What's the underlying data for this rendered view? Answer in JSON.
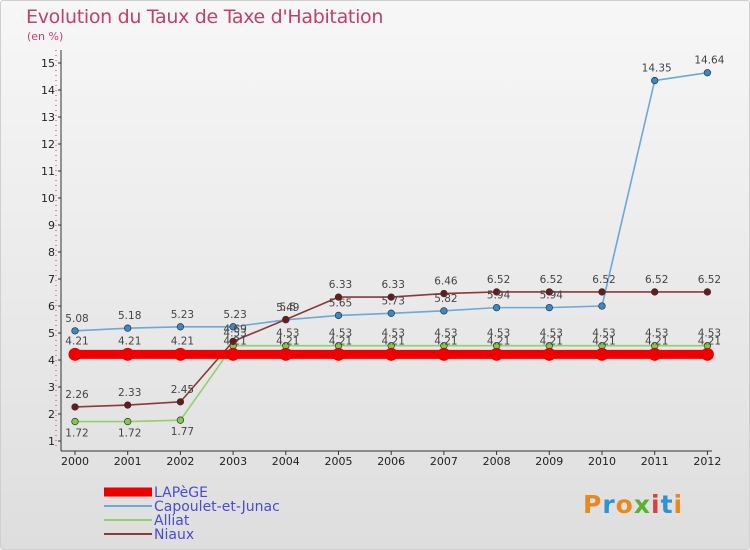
{
  "header": {
    "title": "Evolution du Taux de Taxe d'Habitation",
    "unit": "(en %)"
  },
  "logo": {
    "text": "Proxiti",
    "colors": [
      "#e8891d",
      "#2e93d6",
      "#e8891d",
      "#5bb033",
      "#d94040",
      "#2e93d6",
      "#e8891d"
    ]
  },
  "chart_data": {
    "type": "line",
    "title": "Evolution du Taux de Taxe d'Habitation",
    "ylabel": "(en %)",
    "xlabel": "",
    "ylim": [
      1,
      15
    ],
    "yticks": [
      "1",
      "2",
      "3",
      "4",
      "5",
      "6",
      "7",
      "8",
      "9",
      "10",
      "11",
      "12",
      "13",
      "14",
      "15"
    ],
    "categories": [
      "2000",
      "2001",
      "2002",
      "2003",
      "2004",
      "2005",
      "2006",
      "2007",
      "2008",
      "2009",
      "2010",
      "2011",
      "2012"
    ],
    "series": [
      {
        "name": "LAPèGE",
        "color": "#ee0000",
        "marker": "#ee0000",
        "values": [
          4.21,
          4.21,
          4.21,
          4.21,
          4.21,
          4.21,
          4.21,
          4.21,
          4.21,
          4.21,
          4.21,
          4.21,
          4.21
        ],
        "labels": [
          "4.21",
          "4.21",
          "4.21",
          "4.21",
          "4.21",
          "4.21",
          "4.21",
          "4.21",
          "4.21",
          "4.21",
          "4.21",
          "4.21",
          "4.21"
        ]
      },
      {
        "name": "Capoulet-et-Junac",
        "color": "#6aa9d8",
        "marker": "#3a88cc",
        "values": [
          5.08,
          5.18,
          5.23,
          5.23,
          5.49,
          5.65,
          5.73,
          5.82,
          5.94,
          5.94,
          6.0,
          14.35,
          14.64
        ],
        "labels": [
          "5.08",
          "5.18",
          "5.23",
          "5.23",
          "5.49",
          "5.65",
          "5.73",
          "5.82",
          "5.94",
          "5.94",
          "",
          "14.35",
          "14.64"
        ]
      },
      {
        "name": "Alliat",
        "color": "#8fd16a",
        "marker": "#7ccc4a",
        "values": [
          1.72,
          1.72,
          1.77,
          4.53,
          4.53,
          4.53,
          4.53,
          4.53,
          4.53,
          4.53,
          4.53,
          4.53,
          4.53
        ],
        "labels": [
          "1.72",
          "1.72",
          "1.77",
          "4.53",
          "4.53",
          "4.53",
          "4.53",
          "4.53",
          "4.53",
          "4.53",
          "4.53",
          "4.53",
          "4.53"
        ]
      },
      {
        "name": "Niaux",
        "color": "#8a3a3a",
        "marker": "#6a1a1a",
        "values": [
          2.26,
          2.33,
          2.45,
          4.69,
          5.5,
          6.33,
          6.33,
          6.46,
          6.52,
          6.52,
          6.52,
          6.52,
          6.52
        ],
        "labels": [
          "2.26",
          "2.33",
          "2.45",
          "4.69",
          "5.5",
          "6.33",
          "6.33",
          "6.46",
          "6.52",
          "6.52",
          "6.52",
          "6.52",
          "6.52"
        ]
      }
    ]
  }
}
